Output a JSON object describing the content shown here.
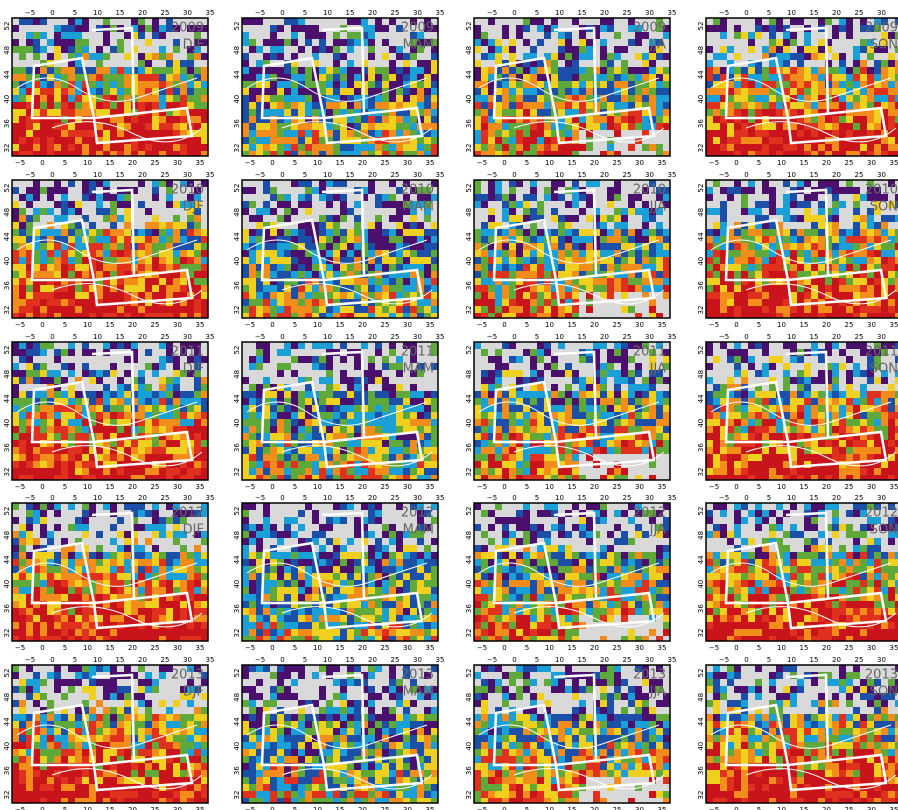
{
  "years": [
    "2009",
    "2010",
    "2011",
    "2012",
    "2013"
  ],
  "seasons": [
    "DJF",
    "MAM",
    "JJA",
    "SON"
  ],
  "lon_ticks": [
    "−5",
    "0",
    "5",
    "10",
    "15",
    "20",
    "25",
    "30",
    "35"
  ],
  "lat_ticks": [
    "32",
    "36",
    "40",
    "44",
    "48",
    "52"
  ]
}
